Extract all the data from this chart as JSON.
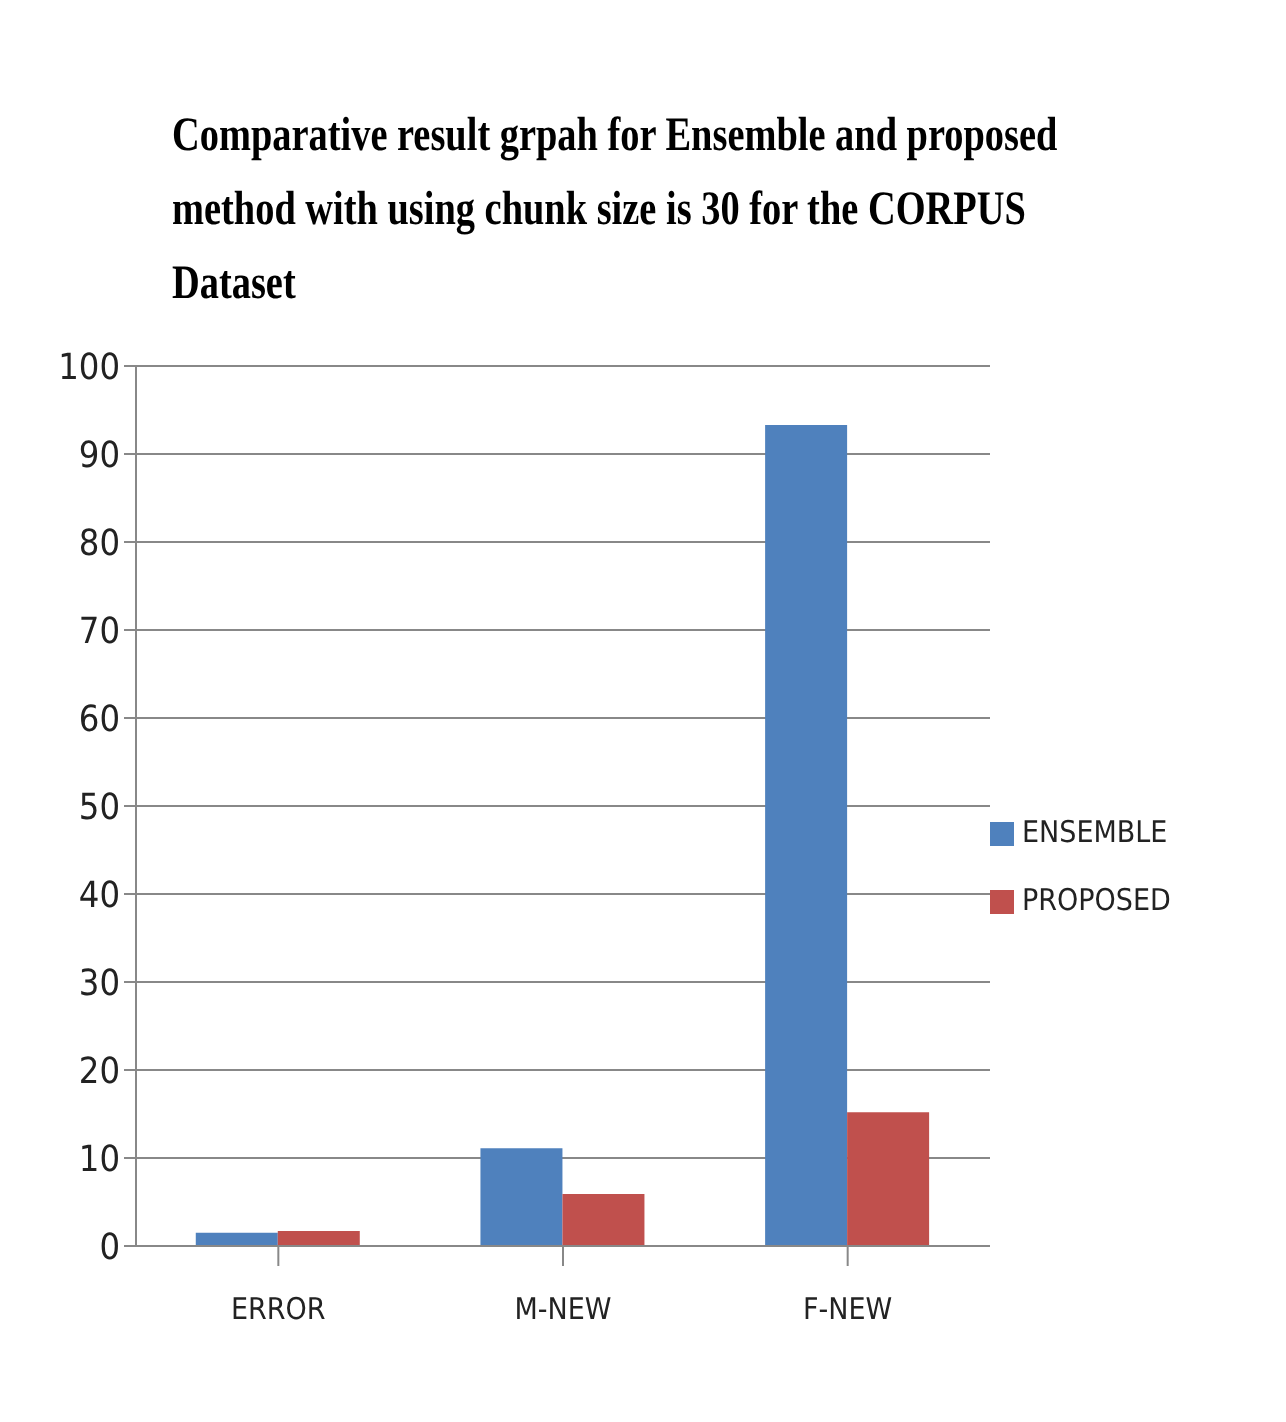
{
  "chart_data": {
    "type": "bar",
    "title": "Comparative result grpah for Ensemble and proposed method with using chunk size is 30 for the CORPUS Dataset",
    "categories": [
      "ERROR",
      "M-NEW",
      "F-NEW"
    ],
    "series": [
      {
        "name": "ENSEMBLE",
        "color": "#4f81bd",
        "values": [
          1.5,
          11.1,
          93.3
        ]
      },
      {
        "name": "PROPOSED",
        "color": "#c0504d",
        "values": [
          1.7,
          5.9,
          15.2
        ]
      }
    ],
    "ylim": [
      0,
      100
    ],
    "yticks": [
      0,
      10,
      20,
      30,
      40,
      50,
      60,
      70,
      80,
      90,
      100
    ],
    "grid": "y",
    "legend": "right"
  }
}
